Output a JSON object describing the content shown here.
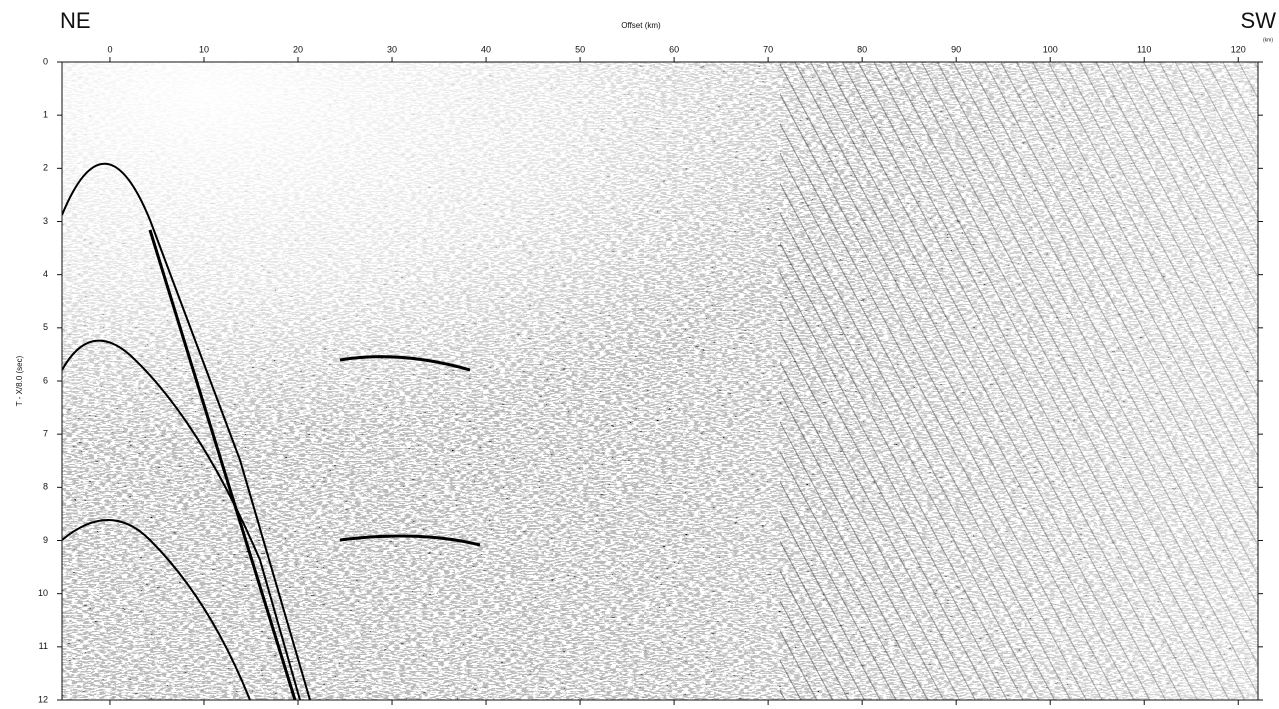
{
  "chart_data": {
    "type": "seismic-section",
    "annotations": [
      "NE",
      "SW",
      "(km)"
    ],
    "xlabel": "Offset (km)",
    "ylabel": "T - X/8.0 (sec)",
    "xlim": [
      -5.1,
      122.1
    ],
    "xticks": [
      0,
      10,
      20,
      30,
      40,
      50,
      60,
      70,
      80,
      90,
      100,
      110,
      120
    ],
    "ylim": [
      12,
      0
    ],
    "yticks": [
      0,
      1,
      2,
      3,
      4,
      5,
      6,
      7,
      8,
      9,
      10,
      11,
      12
    ]
  }
}
